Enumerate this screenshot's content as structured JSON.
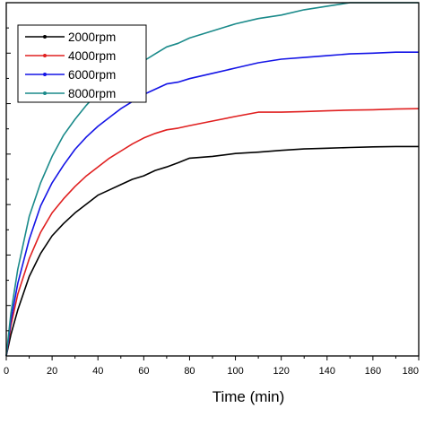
{
  "chart_data": {
    "type": "line",
    "xlabel": "Time (min)",
    "ylabel": "",
    "xlim": [
      0,
      180
    ],
    "ylim": [
      0,
      1.0
    ],
    "xticks": [
      0,
      20,
      40,
      60,
      80,
      100,
      120,
      140,
      160,
      180
    ],
    "xtick_labels": [
      "0",
      "20",
      "40",
      "60",
      "80",
      "100",
      "120",
      "140",
      "160",
      "180"
    ],
    "grid": false,
    "legend_position": "top-left",
    "series": [
      {
        "name": "2000rpm",
        "color": "#000000",
        "x": [
          0,
          2,
          5,
          10,
          15,
          20,
          25,
          30,
          35,
          40,
          45,
          50,
          55,
          60,
          65,
          70,
          75,
          80,
          90,
          100,
          110,
          120,
          130,
          140,
          150,
          160,
          170,
          180
        ],
        "y": [
          0.0,
          0.06,
          0.13,
          0.225,
          0.29,
          0.34,
          0.375,
          0.405,
          0.43,
          0.455,
          0.47,
          0.485,
          0.5,
          0.51,
          0.525,
          0.535,
          0.547,
          0.56,
          0.565,
          0.573,
          0.577,
          0.582,
          0.586,
          0.588,
          0.59,
          0.592,
          0.593,
          0.593
        ]
      },
      {
        "name": "4000rpm",
        "color": "#e02020",
        "x": [
          0,
          2,
          5,
          10,
          15,
          20,
          25,
          30,
          35,
          40,
          45,
          50,
          55,
          60,
          65,
          70,
          75,
          80,
          90,
          100,
          110,
          120,
          130,
          140,
          150,
          160,
          170,
          180
        ],
        "y": [
          0.0,
          0.085,
          0.175,
          0.275,
          0.35,
          0.405,
          0.445,
          0.48,
          0.51,
          0.535,
          0.56,
          0.58,
          0.6,
          0.617,
          0.63,
          0.64,
          0.645,
          0.652,
          0.665,
          0.678,
          0.69,
          0.69,
          0.692,
          0.694,
          0.696,
          0.697,
          0.699,
          0.7
        ]
      },
      {
        "name": "6000rpm",
        "color": "#1414e6",
        "x": [
          0,
          2,
          5,
          10,
          15,
          20,
          25,
          30,
          35,
          40,
          45,
          50,
          55,
          60,
          65,
          70,
          75,
          80,
          90,
          100,
          110,
          120,
          130,
          140,
          150,
          160,
          170,
          180
        ],
        "y": [
          0.0,
          0.1,
          0.205,
          0.33,
          0.425,
          0.49,
          0.54,
          0.585,
          0.62,
          0.65,
          0.675,
          0.7,
          0.72,
          0.74,
          0.755,
          0.77,
          0.775,
          0.785,
          0.8,
          0.815,
          0.83,
          0.84,
          0.845,
          0.85,
          0.855,
          0.857,
          0.86,
          0.86
        ]
      },
      {
        "name": "8000rpm",
        "color": "#1a8a8a",
        "x": [
          0,
          2,
          5,
          10,
          15,
          20,
          25,
          30,
          35,
          40,
          45,
          50,
          55,
          60,
          65,
          70,
          75,
          80,
          90,
          100,
          110,
          120,
          130,
          140,
          150,
          160,
          170,
          180
        ],
        "y": [
          0.0,
          0.12,
          0.245,
          0.395,
          0.49,
          0.565,
          0.625,
          0.67,
          0.71,
          0.745,
          0.77,
          0.795,
          0.815,
          0.835,
          0.855,
          0.875,
          0.885,
          0.9,
          0.92,
          0.94,
          0.955,
          0.965,
          0.98,
          0.99,
          1.0,
          1.01,
          1.015,
          1.02
        ]
      }
    ]
  }
}
